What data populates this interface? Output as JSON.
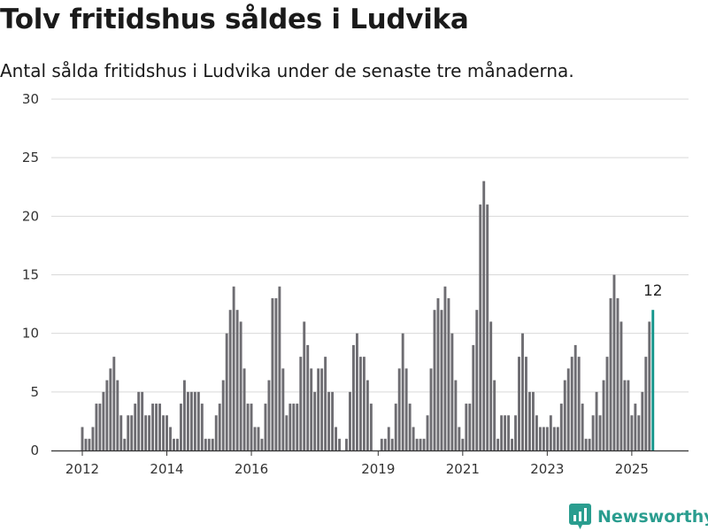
{
  "title": "Tolv fritidshus såldes i Ludvika",
  "subtitle": "Antal sålda fritidshus i Ludvika under de senaste tre månaderna.",
  "brand": "Newsworthy",
  "colors": {
    "bar": "#6e6d72",
    "highlight": "#14968c",
    "grid": "#d9d9d9",
    "axis": "#333333",
    "brand": "#2a9d8f"
  },
  "chart_data": {
    "type": "bar",
    "title": "Tolv fritidshus såldes i Ludvika",
    "subtitle": "Antal sålda fritidshus i Ludvika under de senaste tre månaderna.",
    "xlabel": "",
    "ylabel": "",
    "ylim": [
      0,
      30
    ],
    "yticks": [
      0,
      5,
      10,
      15,
      20,
      25,
      30
    ],
    "xticks": [
      {
        "label": "2012",
        "index": 0
      },
      {
        "label": "2014",
        "index": 24
      },
      {
        "label": "2016",
        "index": 48
      },
      {
        "label": "2019",
        "index": 84
      },
      {
        "label": "2021",
        "index": 108
      },
      {
        "label": "2023",
        "index": 132
      },
      {
        "label": "2025",
        "index": 156
      }
    ],
    "grid": true,
    "highlight_index": 162,
    "highlight_label": "12",
    "values": [
      2,
      1,
      1,
      2,
      4,
      4,
      5,
      6,
      7,
      8,
      6,
      3,
      1,
      3,
      3,
      4,
      5,
      5,
      3,
      3,
      4,
      4,
      4,
      3,
      3,
      2,
      1,
      1,
      4,
      6,
      5,
      5,
      5,
      5,
      4,
      1,
      1,
      1,
      3,
      4,
      6,
      10,
      12,
      14,
      12,
      11,
      7,
      4,
      4,
      2,
      2,
      1,
      4,
      6,
      13,
      13,
      14,
      7,
      3,
      4,
      4,
      4,
      8,
      11,
      9,
      7,
      5,
      7,
      7,
      8,
      5,
      5,
      2,
      1,
      0,
      1,
      5,
      9,
      10,
      8,
      8,
      6,
      4,
      0,
      0,
      1,
      1,
      2,
      1,
      4,
      7,
      10,
      7,
      4,
      2,
      1,
      1,
      1,
      3,
      7,
      12,
      13,
      12,
      14,
      13,
      10,
      6,
      2,
      1,
      4,
      4,
      9,
      12,
      21,
      23,
      21,
      11,
      6,
      1,
      3,
      3,
      3,
      1,
      3,
      8,
      10,
      8,
      5,
      5,
      3,
      2,
      2,
      2,
      3,
      2,
      2,
      4,
      6,
      7,
      8,
      9,
      8,
      4,
      1,
      1,
      3,
      5,
      3,
      6,
      8,
      13,
      15,
      13,
      11,
      6,
      6,
      3,
      4,
      3,
      5,
      8,
      11,
      12
    ]
  }
}
